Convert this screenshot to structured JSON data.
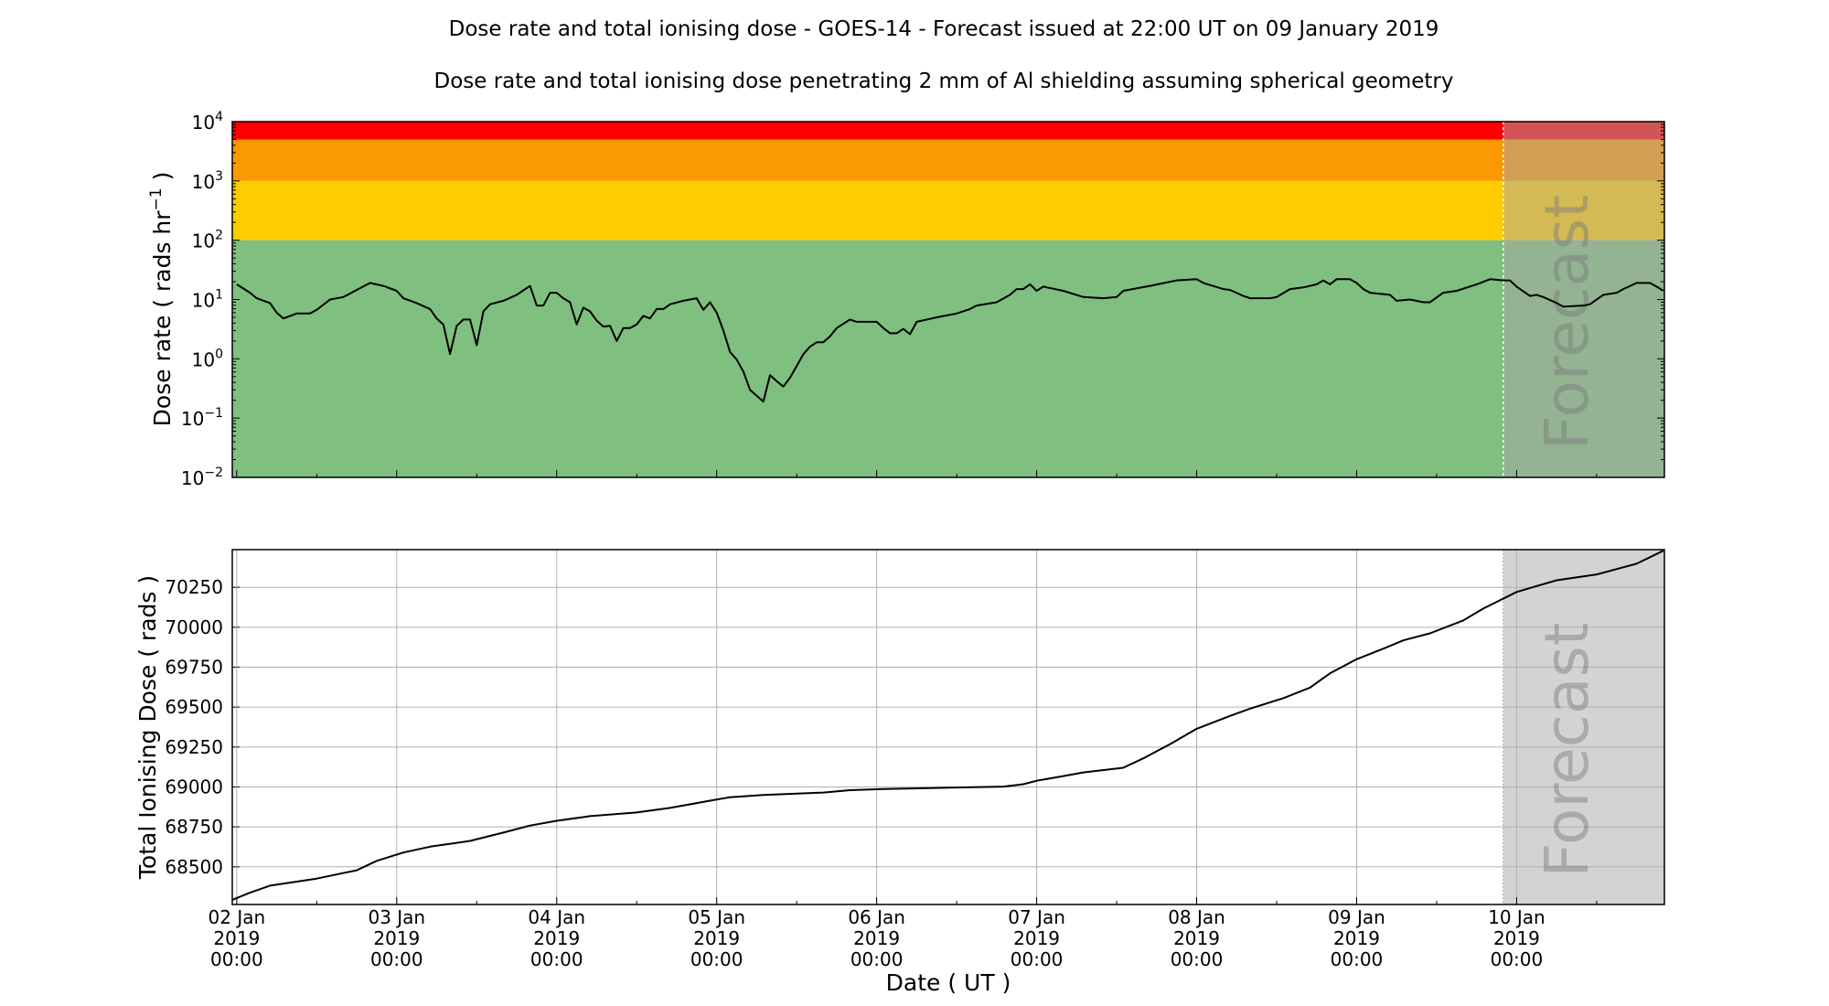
{
  "title": "Dose rate and total ionising dose - GOES-14 - Forecast issued at 22:00 UT on 09 January 2019",
  "subtitle": "Dose rate and total ionising dose penetrating 2 mm of Al shielding assuming spherical geometry",
  "chart_data": [
    {
      "type": "line",
      "ylabel": "Dose rate ( rads hr^-1 )",
      "ylabel_main": "Dose rate ( rads hr",
      "ylabel_sup": "−1",
      "ylabel_end": " )",
      "yscale": "log",
      "ylim": [
        0.01,
        10000
      ],
      "ytick_values": [
        0.01,
        0.1,
        1,
        10,
        100,
        1000,
        10000
      ],
      "ytick_exponents": [
        "−2",
        "−1",
        "0",
        "1",
        "2",
        "3",
        "4"
      ],
      "ytick_base": "10",
      "xlim": [
        "2019-01-01 23:20",
        "2019-01-10 22:10"
      ],
      "grid": false,
      "bands": [
        {
          "from": 5000,
          "to": 10000,
          "color": "#ff0000"
        },
        {
          "from": 1000,
          "to": 5000,
          "color": "#fb9902"
        },
        {
          "from": 100,
          "to": 1000,
          "color": "#fecc00"
        },
        {
          "from": 0.01,
          "to": 100,
          "color": "#7fbf7f"
        }
      ],
      "forecast_start": "2019-01-09 22:00",
      "forecast_label": "Forecast",
      "line_color": "#000000",
      "x": [
        "2019-01-02 00:00",
        "2019-01-02 02:00",
        "2019-01-02 03:00",
        "2019-01-02 05:00",
        "2019-01-02 06:00",
        "2019-01-02 07:00",
        "2019-01-02 09:00",
        "2019-01-02 11:00",
        "2019-01-02 12:00",
        "2019-01-02 14:00",
        "2019-01-02 16:00",
        "2019-01-02 18:00",
        "2019-01-02 20:00",
        "2019-01-02 22:00",
        "2019-01-03 00:00",
        "2019-01-03 01:00",
        "2019-01-03 03:00",
        "2019-01-03 05:00",
        "2019-01-03 06:00",
        "2019-01-03 07:00",
        "2019-01-03 08:00",
        "2019-01-03 09:00",
        "2019-01-03 10:00",
        "2019-01-03 11:00",
        "2019-01-03 12:00",
        "2019-01-03 13:00",
        "2019-01-03 14:00",
        "2019-01-03 16:00",
        "2019-01-03 18:00",
        "2019-01-03 20:00",
        "2019-01-03 21:00",
        "2019-01-03 22:00",
        "2019-01-03 23:00",
        "2019-01-04 00:00",
        "2019-01-04 01:00",
        "2019-01-04 02:00",
        "2019-01-04 03:00",
        "2019-01-04 04:00",
        "2019-01-04 05:00",
        "2019-01-04 06:00",
        "2019-01-04 07:00",
        "2019-01-04 08:00",
        "2019-01-04 09:00",
        "2019-01-04 10:00",
        "2019-01-04 11:00",
        "2019-01-04 12:00",
        "2019-01-04 13:00",
        "2019-01-04 14:00",
        "2019-01-04 15:00",
        "2019-01-04 16:00",
        "2019-01-04 17:00",
        "2019-01-04 19:00",
        "2019-01-04 21:00",
        "2019-01-04 22:00",
        "2019-01-04 23:00",
        "2019-01-05 00:00",
        "2019-01-05 01:00",
        "2019-01-05 02:00",
        "2019-01-05 03:00",
        "2019-01-05 04:00",
        "2019-01-05 05:00",
        "2019-01-05 07:00",
        "2019-01-05 08:00",
        "2019-01-05 09:00",
        "2019-01-05 10:00",
        "2019-01-05 11:00",
        "2019-01-05 13:00",
        "2019-01-05 14:00",
        "2019-01-05 15:00",
        "2019-01-05 16:00",
        "2019-01-05 17:00",
        "2019-01-05 18:00",
        "2019-01-05 20:00",
        "2019-01-05 21:00",
        "2019-01-06 00:00",
        "2019-01-06 01:00",
        "2019-01-06 02:00",
        "2019-01-06 03:00",
        "2019-01-06 04:00",
        "2019-01-06 05:00",
        "2019-01-06 06:00",
        "2019-01-06 09:00",
        "2019-01-06 12:00",
        "2019-01-06 14:00",
        "2019-01-06 15:00",
        "2019-01-06 18:00",
        "2019-01-06 20:00",
        "2019-01-06 21:00",
        "2019-01-06 22:00",
        "2019-01-06 23:00",
        "2019-01-07 00:00",
        "2019-01-07 01:00",
        "2019-01-07 04:00",
        "2019-01-07 07:00",
        "2019-01-07 10:00",
        "2019-01-07 12:00",
        "2019-01-07 13:00",
        "2019-01-07 17:00",
        "2019-01-07 21:00",
        "2019-01-08 00:00",
        "2019-01-08 01:00",
        "2019-01-08 04:00",
        "2019-01-08 05:00",
        "2019-01-08 07:00",
        "2019-01-08 08:00",
        "2019-01-08 11:00",
        "2019-01-08 12:00",
        "2019-01-08 14:00",
        "2019-01-08 16:00",
        "2019-01-08 18:00",
        "2019-01-08 19:00",
        "2019-01-08 20:00",
        "2019-01-08 21:00",
        "2019-01-08 23:00",
        "2019-01-09 00:00",
        "2019-01-09 01:00",
        "2019-01-09 02:00",
        "2019-01-09 05:00",
        "2019-01-09 06:00",
        "2019-01-09 08:00",
        "2019-01-09 10:00",
        "2019-01-09 11:00",
        "2019-01-09 13:00",
        "2019-01-09 15:00",
        "2019-01-09 18:00",
        "2019-01-09 20:00",
        "2019-01-09 22:00",
        "2019-01-09 23:00",
        "2019-01-10 00:00",
        "2019-01-10 02:00",
        "2019-01-10 03:00",
        "2019-01-10 04:00",
        "2019-01-10 06:00",
        "2019-01-10 07:00",
        "2019-01-10 10:00",
        "2019-01-10 11:00",
        "2019-01-10 13:00",
        "2019-01-10 15:00",
        "2019-01-10 16:00",
        "2019-01-10 18:00",
        "2019-01-10 20:00",
        "2019-01-10 21:00",
        "2019-01-10 22:00"
      ],
      "values": [
        18,
        13,
        10.5,
        8.7,
        6,
        4.8,
        5.8,
        5.8,
        6.7,
        10,
        11,
        14.5,
        19,
        17,
        14,
        10.5,
        8.7,
        6.9,
        4.8,
        3.8,
        1.2,
        3.6,
        4.6,
        4.6,
        1.7,
        6.3,
        8.3,
        9.5,
        12,
        17,
        7.9,
        7.9,
        13,
        13,
        10.5,
        9,
        3.8,
        7.3,
        6.3,
        4.4,
        3.5,
        3.6,
        2.0,
        3.3,
        3.3,
        3.8,
        5.3,
        4.8,
        6.9,
        6.9,
        8.3,
        9.5,
        10.5,
        6.7,
        9,
        6,
        3.0,
        1.3,
        0.97,
        0.61,
        0.3,
        0.19,
        0.53,
        0.42,
        0.34,
        0.48,
        1.2,
        1.6,
        1.9,
        1.9,
        2.4,
        3.3,
        4.6,
        4.2,
        4.2,
        3.3,
        2.7,
        2.7,
        3.2,
        2.6,
        4.2,
        5,
        5.8,
        6.9,
        7.9,
        9,
        12,
        15,
        15,
        18,
        14,
        16.5,
        14,
        11,
        10.5,
        11,
        14,
        17,
        21,
        22,
        19,
        15,
        14.5,
        11.5,
        10.5,
        10.5,
        11,
        15,
        16,
        18,
        21,
        18,
        22,
        22,
        19,
        15,
        13,
        12,
        9.5,
        10,
        9,
        9,
        13,
        14,
        18,
        22,
        21,
        21,
        16.5,
        11.5,
        12,
        11,
        8.7,
        7.6,
        7.9,
        8.3,
        12,
        13,
        15,
        19,
        19,
        16.5,
        14
      ]
    },
    {
      "type": "line",
      "ylabel": "Total Ionising Dose ( rads )",
      "xlabel": "Date ( UT )",
      "ylim": [
        68264,
        70486
      ],
      "ytick_values": [
        68500,
        68750,
        69000,
        69250,
        69500,
        69750,
        70000,
        70250
      ],
      "ytick_labels": [
        "68500",
        "68750",
        "69000",
        "69250",
        "69500",
        "69750",
        "70000",
        "70250"
      ],
      "xlim": [
        "2019-01-01 23:20",
        "2019-01-10 22:10"
      ],
      "xtick_values": [
        "2019-01-02 00:00",
        "2019-01-03 00:00",
        "2019-01-04 00:00",
        "2019-01-05 00:00",
        "2019-01-06 00:00",
        "2019-01-07 00:00",
        "2019-01-08 00:00",
        "2019-01-09 00:00",
        "2019-01-10 00:00"
      ],
      "xtick_labels": [
        [
          "02 Jan",
          "2019",
          "00:00"
        ],
        [
          "03 Jan",
          "2019",
          "00:00"
        ],
        [
          "04 Jan",
          "2019",
          "00:00"
        ],
        [
          "05 Jan",
          "2019",
          "00:00"
        ],
        [
          "06 Jan",
          "2019",
          "00:00"
        ],
        [
          "07 Jan",
          "2019",
          "00:00"
        ],
        [
          "08 Jan",
          "2019",
          "00:00"
        ],
        [
          "09 Jan",
          "2019",
          "00:00"
        ],
        [
          "10 Jan",
          "2019",
          "00:00"
        ]
      ],
      "grid": true,
      "forecast_start": "2019-01-09 22:00",
      "forecast_label": "Forecast",
      "forecast_color": "#d3d3d3",
      "line_color": "#000000",
      "x": [
        "2019-01-01 23:20",
        "2019-01-02 02:00",
        "2019-01-02 05:00",
        "2019-01-02 12:00",
        "2019-01-02 18:00",
        "2019-01-02 21:00",
        "2019-01-03 01:00",
        "2019-01-03 05:00",
        "2019-01-03 11:00",
        "2019-01-03 16:00",
        "2019-01-03 20:00",
        "2019-01-04 00:00",
        "2019-01-04 05:00",
        "2019-01-04 12:00",
        "2019-01-04 17:00",
        "2019-01-04 23:00",
        "2019-01-05 02:00",
        "2019-01-05 07:00",
        "2019-01-05 16:00",
        "2019-01-05 20:00",
        "2019-01-06 01:00",
        "2019-01-06 10:00",
        "2019-01-06 19:00",
        "2019-01-06 22:00",
        "2019-01-07 00:00",
        "2019-01-07 04:00",
        "2019-01-07 07:00",
        "2019-01-07 13:00",
        "2019-01-07 16:00",
        "2019-01-07 20:00",
        "2019-01-08 00:00",
        "2019-01-08 05:00",
        "2019-01-08 08:00",
        "2019-01-08 13:00",
        "2019-01-08 17:00",
        "2019-01-08 20:00",
        "2019-01-09 00:00",
        "2019-01-09 04:00",
        "2019-01-09 07:00",
        "2019-01-09 11:00",
        "2019-01-09 16:00",
        "2019-01-09 19:00",
        "2019-01-10 00:00",
        "2019-01-10 03:00",
        "2019-01-10 06:00",
        "2019-01-10 12:00",
        "2019-01-10 18:00",
        "2019-01-10 22:00"
      ],
      "values": [
        68293,
        68338,
        68382,
        68426,
        68478,
        68537,
        68589,
        68626,
        68662,
        68714,
        68758,
        68788,
        68817,
        68840,
        68869,
        68914,
        68936,
        68950,
        68965,
        68980,
        68987,
        68995,
        69002,
        69017,
        69039,
        69068,
        69091,
        69120,
        69179,
        69268,
        69364,
        69445,
        69490,
        69556,
        69622,
        69711,
        69800,
        69866,
        69918,
        69962,
        70043,
        70117,
        70221,
        70258,
        70294,
        70331,
        70398,
        70479
      ]
    }
  ]
}
